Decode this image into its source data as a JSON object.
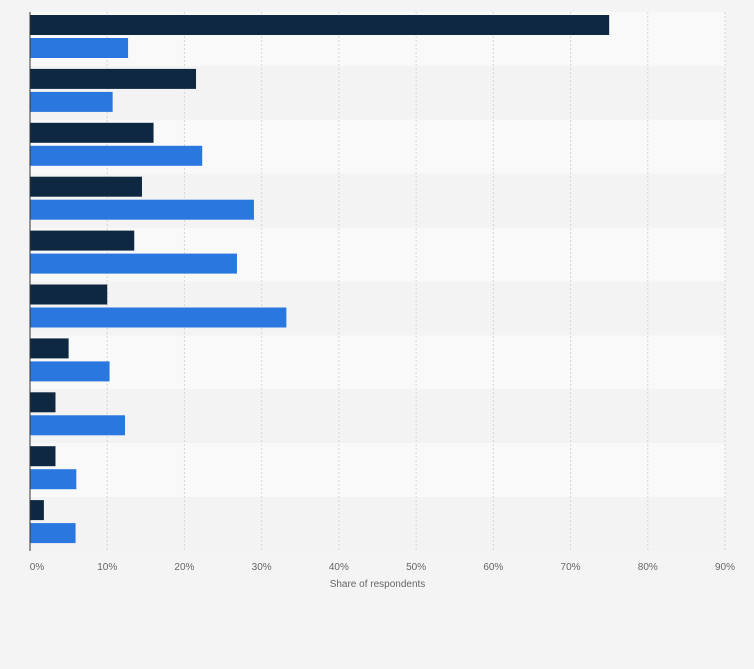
{
  "chart_data": {
    "type": "bar",
    "orientation": "horizontal",
    "xlabel": "Share of respondents",
    "xlim": [
      0,
      90
    ],
    "x_ticks": [
      "0%",
      "10%",
      "20%",
      "30%",
      "40%",
      "50%",
      "60%",
      "70%",
      "80%",
      "90%"
    ],
    "grid": true,
    "legend": "none",
    "category_count": 10,
    "series": [
      {
        "color": "#0f2842",
        "values": [
          75,
          21.5,
          16,
          14.5,
          13.5,
          10,
          5,
          3.3,
          3.3,
          1.8
        ]
      },
      {
        "color": "#2a77e0",
        "values": [
          12.7,
          10.7,
          22.3,
          29,
          26.8,
          33.2,
          10.3,
          12.3,
          6,
          5.9
        ]
      }
    ]
  }
}
